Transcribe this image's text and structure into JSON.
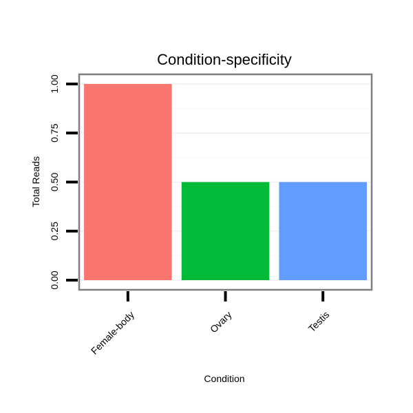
{
  "chart_data": {
    "type": "bar",
    "title": "Condition-specificity",
    "xlabel": "Condition",
    "ylabel": "Total Reads",
    "categories": [
      "Female-body",
      "Ovary",
      "Testis"
    ],
    "values": [
      1.0,
      0.5,
      0.5
    ],
    "colors": [
      "#F8766D",
      "#00BA38",
      "#619CFF"
    ],
    "ylim": [
      0,
      1.0
    ],
    "yticks": [
      0,
      0.25,
      0.5,
      0.75,
      1.0
    ],
    "ytick_labels": [
      "0.00",
      "0.25",
      "0.50",
      "0.75",
      "1.00"
    ],
    "grid": true,
    "legend": "none"
  }
}
